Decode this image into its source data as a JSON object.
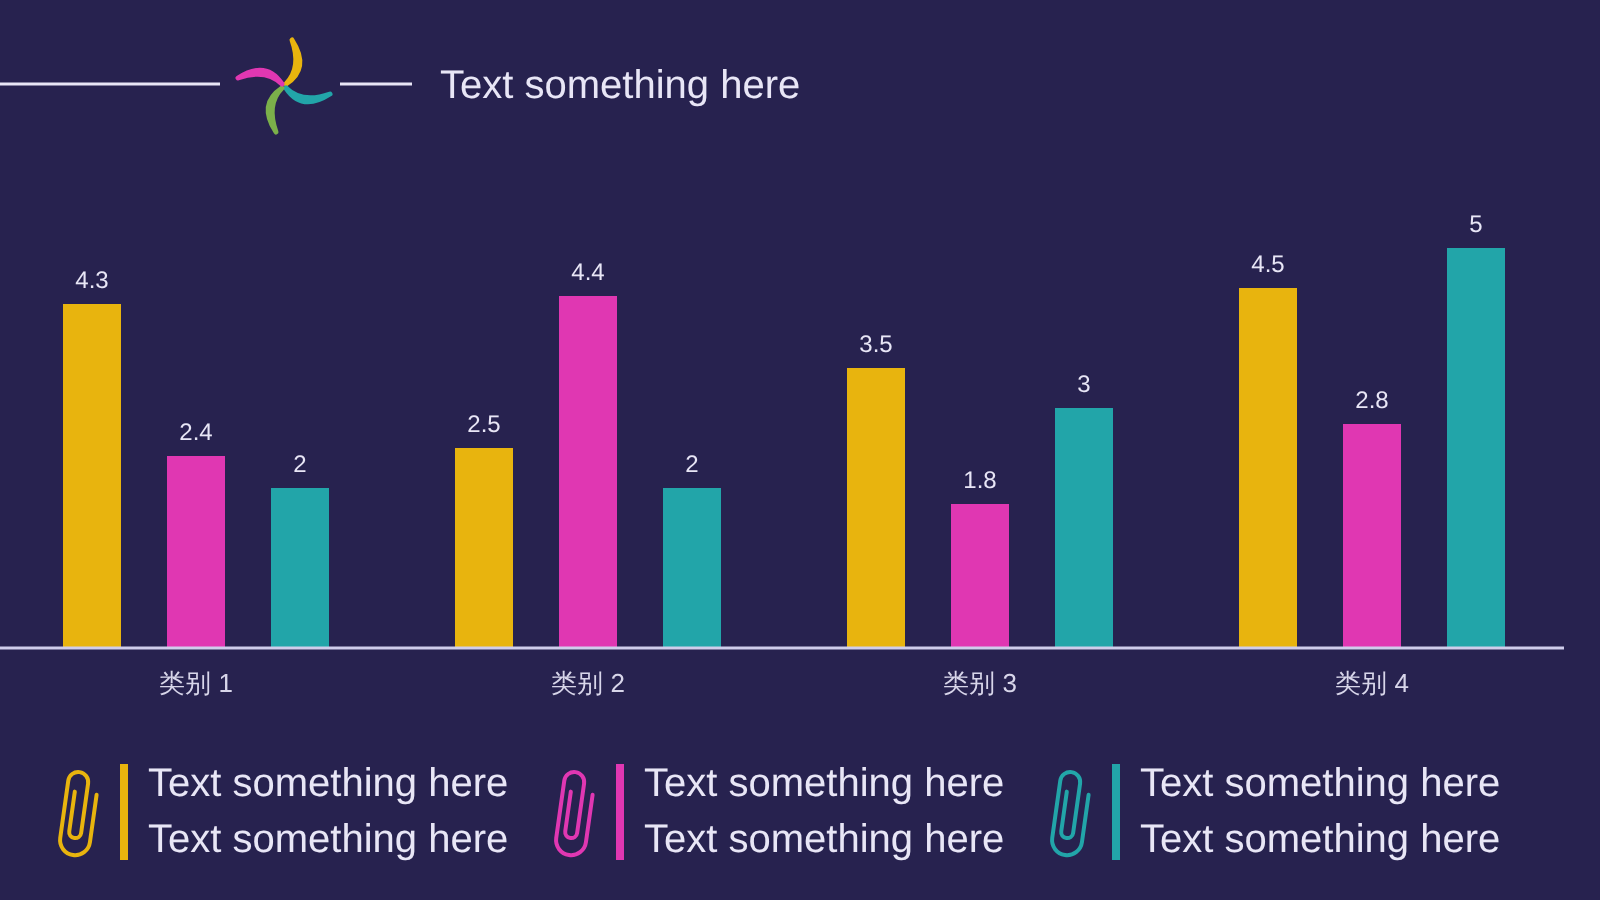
{
  "chart_data": {
    "type": "bar",
    "title": "Text something here",
    "categories": [
      "类别 1",
      "类别 2",
      "类别 3",
      "类别 4"
    ],
    "series": [
      {
        "name": "Text something here\nText something here",
        "color": "#e8b40e",
        "values": [
          4.3,
          2.5,
          3.5,
          4.5
        ]
      },
      {
        "name": "Text something here\nText something here",
        "color": "#e037b2",
        "values": [
          2.4,
          4.4,
          1.8,
          2.8
        ]
      },
      {
        "name": "Text something here\nText something here",
        "color": "#22a5a9",
        "values": [
          2,
          2,
          3,
          5
        ]
      }
    ],
    "tick_labels": "x",
    "data_labels": true,
    "legend": "bottom"
  }
}
